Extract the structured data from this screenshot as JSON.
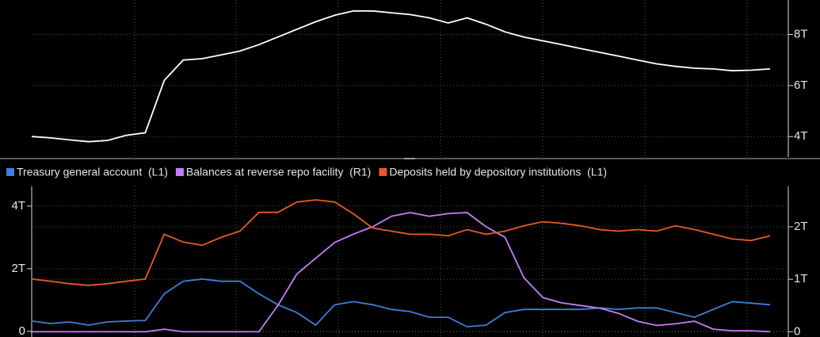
{
  "chart_data": [
    {
      "type": "line",
      "series": [
        {
          "name": null,
          "color": "#ffffff",
          "values": [
            4.0,
            3.95,
            3.87,
            3.8,
            3.85,
            4.05,
            4.15,
            6.2,
            7.0,
            7.05,
            7.2,
            7.35,
            7.6,
            7.9,
            8.2,
            8.5,
            8.75,
            8.92,
            8.92,
            8.85,
            8.78,
            8.65,
            8.45,
            8.65,
            8.4,
            8.1,
            7.9,
            7.75,
            7.6,
            7.45,
            7.3,
            7.15,
            7.0,
            6.85,
            6.75,
            6.68,
            6.65,
            6.58,
            6.6,
            6.65
          ]
        }
      ],
      "ylim": [
        3.2,
        9.35
      ],
      "yticks": [
        {
          "value": 4,
          "label": "4T"
        },
        {
          "value": 6,
          "label": "6T"
        },
        {
          "value": 8,
          "label": "8T"
        }
      ],
      "grid": true
    },
    {
      "type": "line",
      "series": [
        {
          "name": "Treasury general account  (L1)",
          "color": "#3c7fd9",
          "values": [
            0.33,
            0.25,
            0.3,
            0.2,
            0.3,
            0.33,
            0.35,
            1.2,
            1.6,
            1.67,
            1.6,
            1.6,
            1.2,
            0.85,
            0.6,
            0.2,
            0.85,
            0.95,
            0.85,
            0.7,
            0.63,
            0.45,
            0.45,
            0.15,
            0.2,
            0.6,
            0.7,
            0.7,
            0.7,
            0.7,
            0.75,
            0.7,
            0.75,
            0.75,
            0.6,
            0.45,
            0.7,
            0.95,
            0.9,
            0.85
          ]
        },
        {
          "name": "Balances at reverse repo facility  (R1)",
          "color": "#c57df5",
          "axis": "y2",
          "values": [
            0,
            0,
            0,
            0,
            0,
            0,
            0,
            0.05,
            0,
            0,
            0,
            0,
            0,
            0.5,
            1.1,
            1.4,
            1.7,
            1.86,
            2.0,
            2.2,
            2.27,
            2.2,
            2.25,
            2.27,
            2.0,
            1.8,
            1.03,
            0.65,
            0.55,
            0.5,
            0.45,
            0.35,
            0.2,
            0.12,
            0.15,
            0.2,
            0.05,
            0.02,
            0.02,
            0
          ]
        },
        {
          "name": "Deposits held by depository institutions  (L1)",
          "color": "#e8582a",
          "values": [
            1.67,
            1.6,
            1.52,
            1.47,
            1.52,
            1.6,
            1.67,
            3.1,
            2.85,
            2.75,
            3.0,
            3.2,
            3.8,
            3.8,
            4.13,
            4.2,
            4.13,
            3.75,
            3.3,
            3.2,
            3.1,
            3.1,
            3.05,
            3.25,
            3.1,
            3.2,
            3.37,
            3.5,
            3.45,
            3.37,
            3.25,
            3.2,
            3.25,
            3.2,
            3.37,
            3.25,
            3.1,
            2.95,
            2.9,
            3.05
          ]
        }
      ],
      "ylim": [
        -0.18,
        4.63
      ],
      "yticks": [
        0,
        {
          "value": 2,
          "label": "2T"
        },
        {
          "value": 4,
          "label": "4T"
        }
      ],
      "y2lim": [
        -0.1,
        2.77
      ],
      "y2ticks": [
        0,
        {
          "value": 1,
          "label": "1T"
        },
        {
          "value": 2,
          "label": "2T"
        }
      ],
      "grid": true
    }
  ]
}
